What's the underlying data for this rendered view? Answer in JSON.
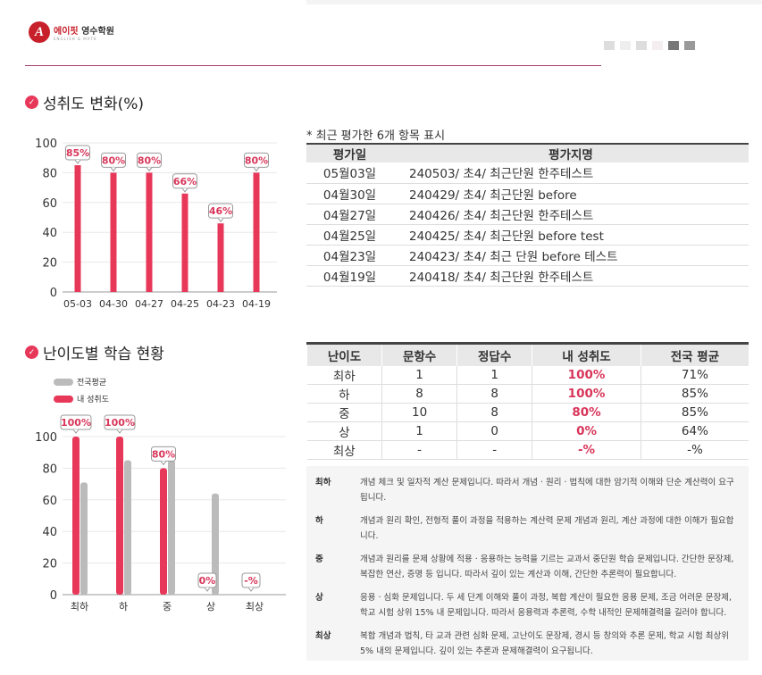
{
  "header": {
    "logo_brand": "에이핏",
    "logo_name": "영수학원",
    "logo_sub": "ENGLISH & MATH"
  },
  "section1": {
    "title": "성취도 변화(%)",
    "note": "* 최근 평가한 6개 항목 표시",
    "table": {
      "headers": [
        "평가일",
        "평가지명"
      ],
      "rows": [
        [
          "05월03일",
          "240503/ 초4/ 최근단원 한주테스트"
        ],
        [
          "04월30일",
          "240429/ 초4/ 최근단원 before"
        ],
        [
          "04월27일",
          "240426/ 초4/ 최근단원 한주테스트"
        ],
        [
          "04월25일",
          "240425/ 초4/ 최근단원 before test"
        ],
        [
          "04월23일",
          "240423/ 초4/ 최근 단원 before 테스트"
        ],
        [
          "04월19일",
          "240418/ 초4/ 최근단원 한주테스트"
        ]
      ]
    }
  },
  "section2": {
    "title": "난이도별 학습 현황",
    "legend": [
      "전국평균",
      "내 성취도"
    ],
    "table": {
      "headers": [
        "난이도",
        "문항수",
        "정답수",
        "내 성취도",
        "전국 평균"
      ],
      "rows": [
        [
          "최하",
          "1",
          "1",
          "100%",
          "71%"
        ],
        [
          "하",
          "8",
          "8",
          "100%",
          "85%"
        ],
        [
          "중",
          "10",
          "8",
          "80%",
          "85%"
        ],
        [
          "상",
          "1",
          "0",
          "0%",
          "64%"
        ],
        [
          "최상",
          "-",
          "-",
          "-%",
          "-%"
        ]
      ]
    },
    "descriptions": [
      {
        "level": "최하",
        "text": "개념 체크 및 일차적 계산 문제입니다. 따라서 개념 · 원리 · 법칙에 대한 암기적 이해와 단순 계산력이 요구됩니다."
      },
      {
        "level": "하",
        "text": "개념과 원리 확인, 전형적 풀이 과정을 적용하는 계산력 문제 개념과 원리, 계산 과정에 대한 이해가 필요합니다."
      },
      {
        "level": "중",
        "text": "개념과 원리를 문제 상황에 적용 · 응용하는 능력을 기르는 교과서 중단원 학습 문제입니다. 간단한 문장제, 복잡한 연산, 증명 등 입니다. 따라서 깊이 있는 계산과 이해, 간단한 추론력이 필요합니다."
      },
      {
        "level": "상",
        "text": "응용 · 심화 문제입니다. 두 세 단계 이해와 풀이 과정, 복합 계산이 필요한 응용 문제, 조금 어려운 문장제, 학교 시험 상위 15% 내 문제입니다. 따라서 응용력과 추론력, 수학 내적인 문제해결력을 길러야 합니다."
      },
      {
        "level": "최상",
        "text": "복합 개념과 법칙, 타 교과 관련 심화 문제, 고난이도 문장제, 경시 등 창의와 추론 문제, 학교 시험 최상위 5% 내의 문제입니다. 깊이 있는 추론과 문제해결력이 요구됩니다."
      }
    ]
  },
  "colors": {
    "accent": "#e8385a",
    "gray": "#bbbbbb"
  },
  "chart_data": [
    {
      "type": "bar",
      "title": "성취도 변화(%)",
      "categories": [
        "05-03",
        "04-30",
        "04-27",
        "04-25",
        "04-23",
        "04-19"
      ],
      "values": [
        85,
        80,
        80,
        66,
        46,
        80
      ],
      "labels": [
        "85%",
        "80%",
        "80%",
        "66%",
        "46%",
        "80%"
      ],
      "yticks": [
        "0",
        "20",
        "40",
        "60",
        "80",
        "100"
      ],
      "ylim": [
        0,
        100
      ]
    },
    {
      "type": "bar",
      "title": "난이도별 학습 현황",
      "categories": [
        "최하",
        "하",
        "중",
        "상",
        "최상"
      ],
      "series": [
        {
          "name": "내 성취도",
          "values": [
            100,
            100,
            80,
            0,
            null
          ],
          "labels": [
            "100%",
            "100%",
            "80%",
            "0%",
            "-%"
          ]
        },
        {
          "name": "전국평균",
          "values": [
            71,
            85,
            85,
            64,
            null
          ]
        }
      ],
      "yticks": [
        "0",
        "20",
        "40",
        "60",
        "80",
        "100"
      ],
      "ylim": [
        0,
        100
      ]
    }
  ]
}
